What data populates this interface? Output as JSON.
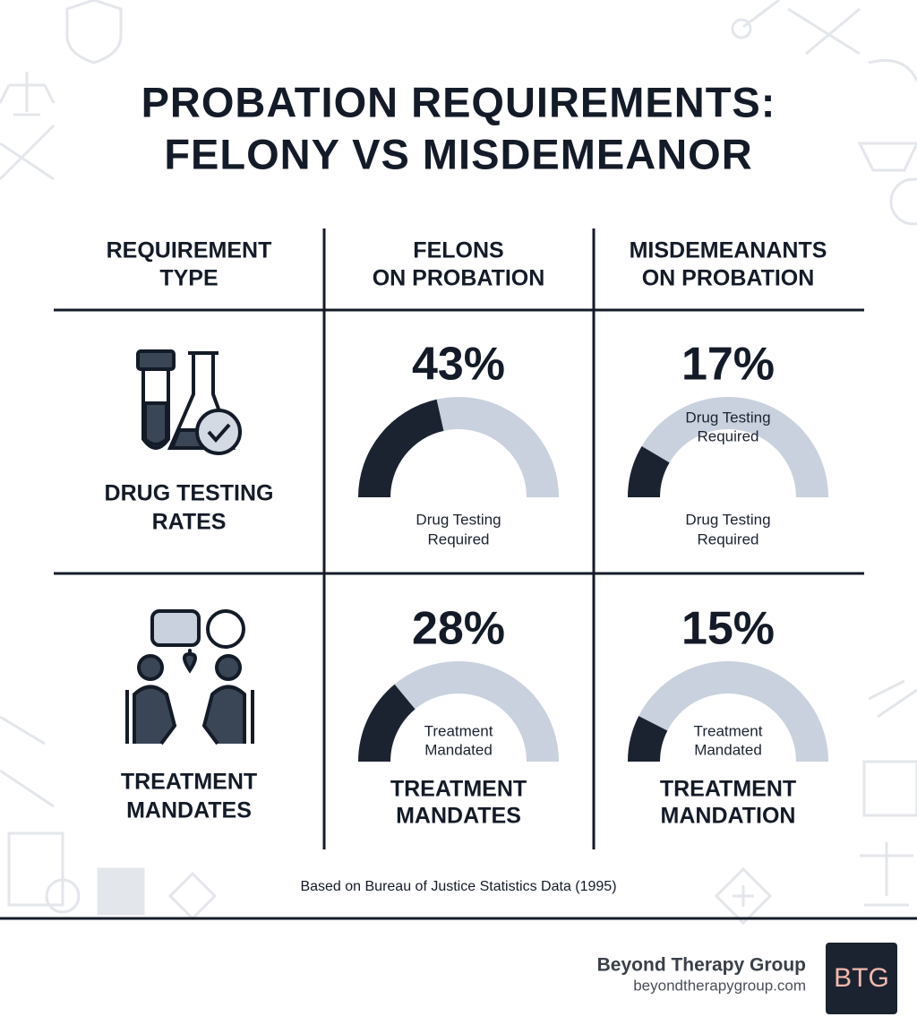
{
  "header": {
    "title_lines": [
      "PROBATION REQUIREMENTS:",
      "FELONY VS MISDEMEANOR"
    ]
  },
  "table": {
    "columns": [
      [
        "REQUIREMENT",
        "TYPE"
      ],
      [
        "FELONS",
        "ON PROBATION"
      ],
      [
        "MISDEMEANANTS",
        "ON PROBATION"
      ]
    ],
    "range": [
      0,
      100
    ],
    "rows": [
      {
        "label": [
          "DRUG TESTING",
          "RATES"
        ],
        "cells": [
          {
            "value": 43,
            "value_label": "43%",
            "caption": [
              "Drug Testing",
              "Required"
            ]
          },
          {
            "value": 17,
            "value_label": "17%",
            "inner_caption": [
              "Drug Testing",
              "Required"
            ],
            "caption": [
              "Drug Testing",
              "Required"
            ]
          }
        ]
      },
      {
        "label": [
          "TREATMENT",
          "MANDATES"
        ],
        "cells": [
          {
            "value": 28,
            "value_label": "28%",
            "inner_caption": [
              "Treatment",
              "Mandated"
            ],
            "footer": [
              "TREATMENT",
              "MANDATES"
            ]
          },
          {
            "value": 15,
            "value_label": "15%",
            "inner_caption": [
              "Treatment",
              "Mandated"
            ],
            "footer": [
              "TREATMENT",
              "MANDATION"
            ]
          }
        ]
      }
    ]
  },
  "source": "Based on Bureau of Justice Statistics Data (1995)",
  "brand": {
    "name": "Beyond Therapy Group",
    "url": "beyondtherapygroup.com",
    "logo": "BTG"
  }
}
